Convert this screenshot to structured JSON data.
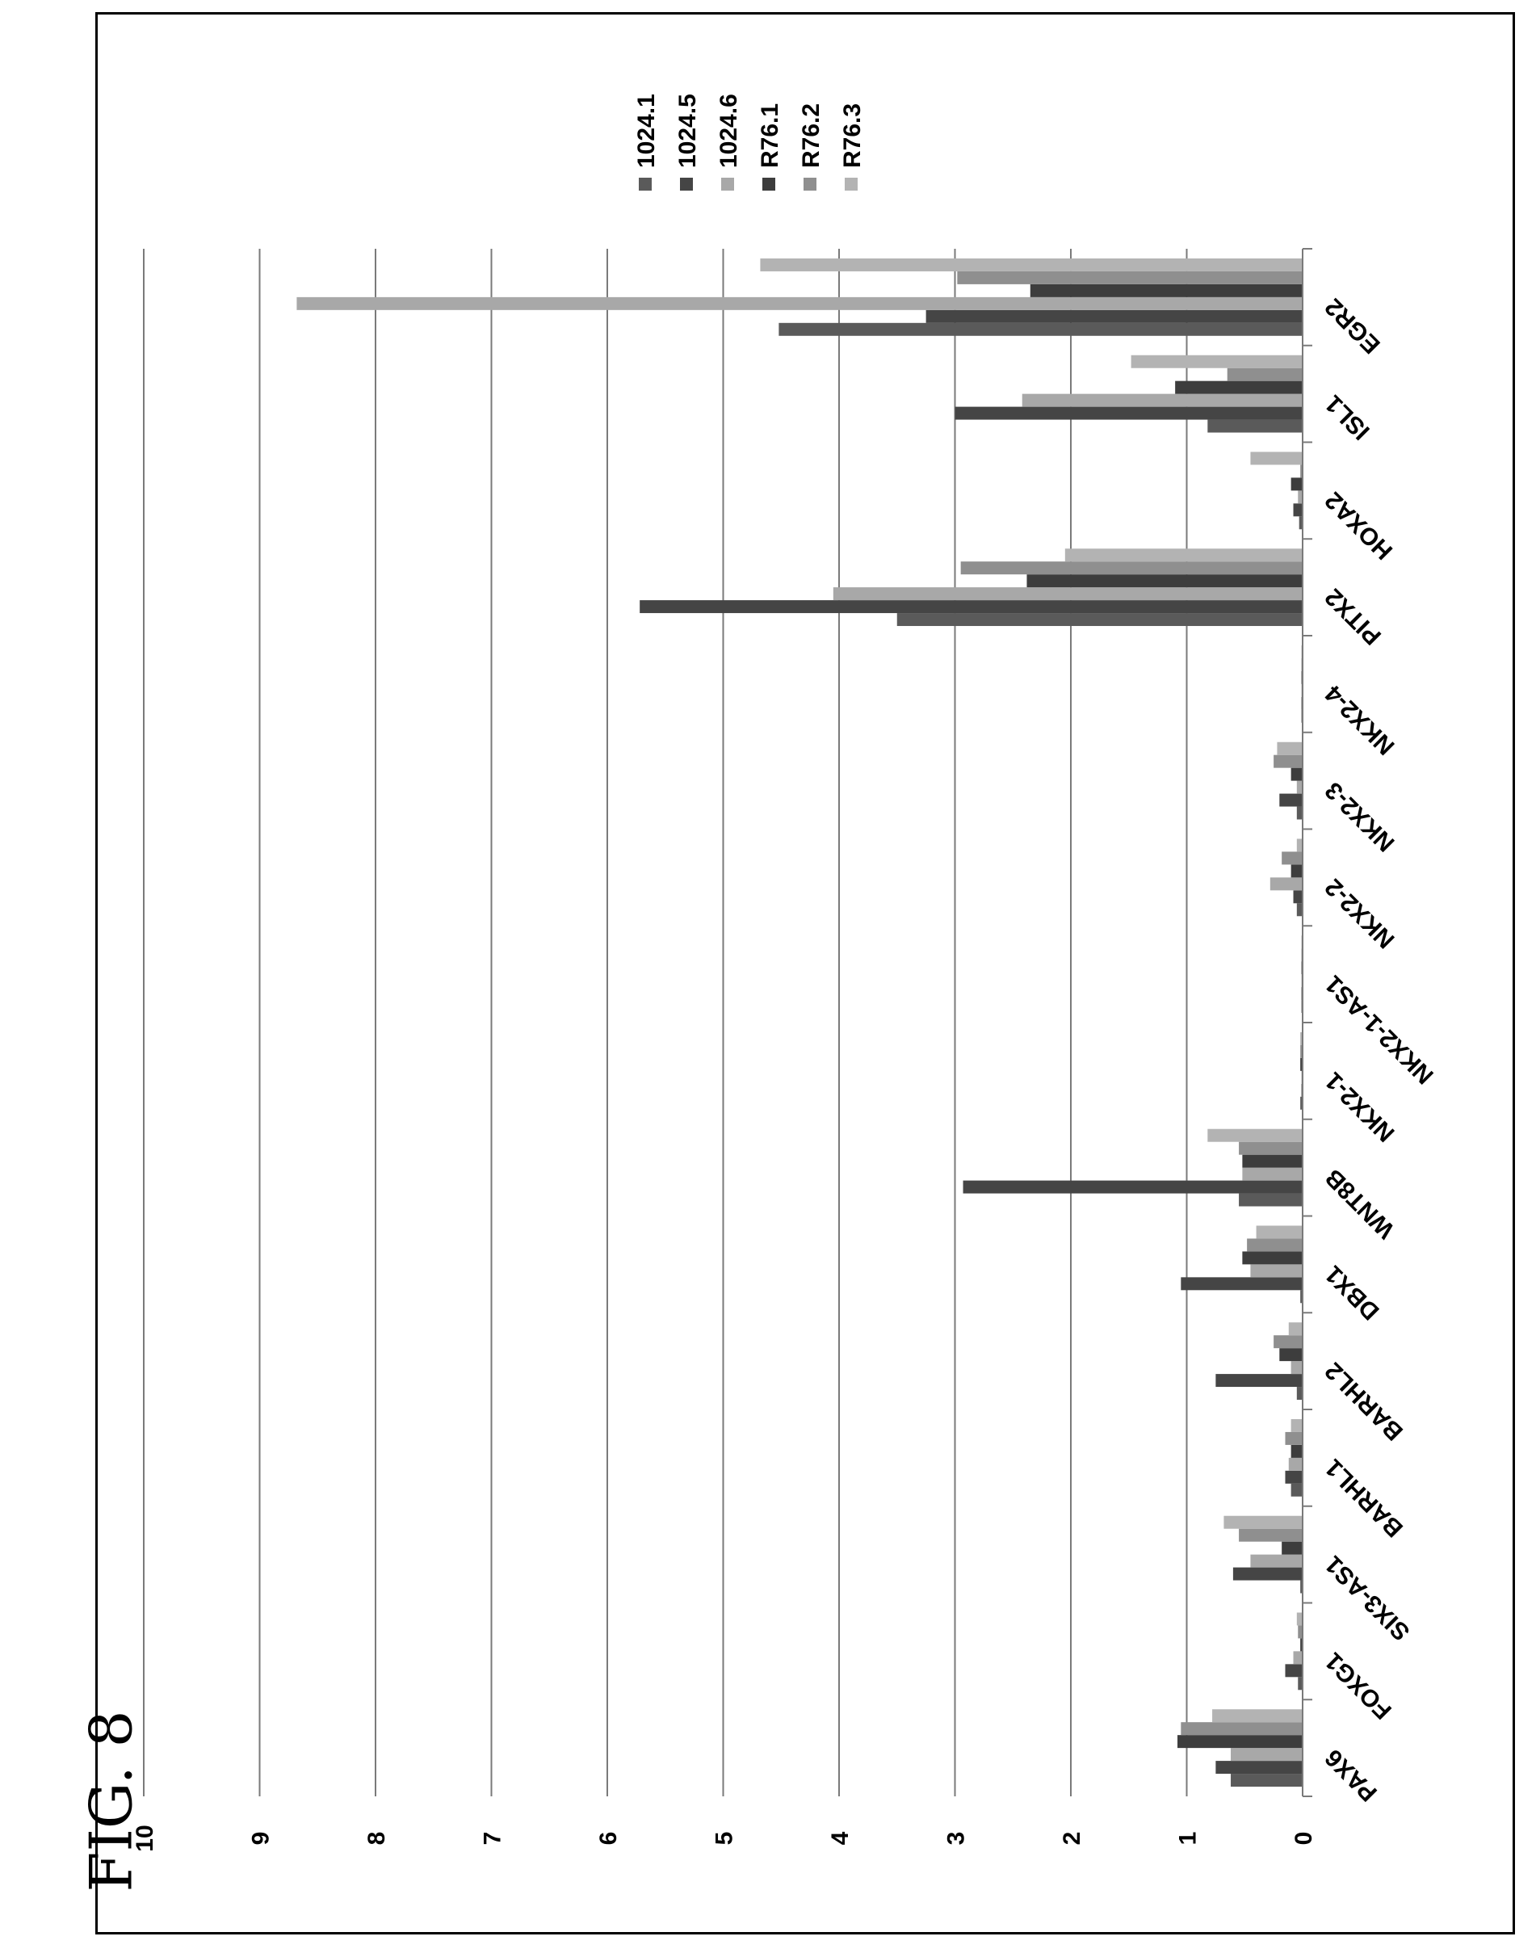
{
  "figure_label": "FIG. 8",
  "colors": {
    "1024.1": "#5a5a5a",
    "1024.5": "#454545",
    "1024.6": "#a8a8a8",
    "R76.1": "#3d3d3d",
    "R76.2": "#8f8f8f",
    "R76.3": "#b3b3b3",
    "grid": "#7a7a7a",
    "axis": "#7a7a7a"
  },
  "chart_data": {
    "type": "bar",
    "orientation": "horizontal (page rotated 90°)",
    "title": "",
    "xlabel": "",
    "ylabel": "",
    "ylim": [
      0,
      10
    ],
    "yticks": [
      0,
      1,
      2,
      3,
      4,
      5,
      6,
      7,
      8,
      9,
      10
    ],
    "grid": true,
    "legend_position": "top-right",
    "categories": [
      "PAX6",
      "FOXG1",
      "SIX3-AS1",
      "BARHL1",
      "BARHL2",
      "DBX1",
      "WNT8B",
      "NKX2-1",
      "NKX2-1-AS1",
      "NKX2-2",
      "NKX2-3",
      "NKX2-4",
      "PITX2",
      "HOXA2",
      "ISL1",
      "EGR2"
    ],
    "series": [
      {
        "name": "1024.1",
        "values": [
          0.62,
          0.04,
          0.02,
          0.1,
          0.05,
          0.02,
          0.55,
          0.02,
          0.01,
          0.05,
          0.05,
          0.01,
          3.5,
          0.03,
          0.82,
          4.52
        ]
      },
      {
        "name": "1024.5",
        "values": [
          0.75,
          0.15,
          0.6,
          0.15,
          0.75,
          1.05,
          2.93,
          0.01,
          0.01,
          0.08,
          0.2,
          0.01,
          5.72,
          0.08,
          3.0,
          3.25
        ]
      },
      {
        "name": "1024.6",
        "values": [
          0.62,
          0.08,
          0.45,
          0.12,
          0.1,
          0.45,
          0.52,
          0.01,
          0.01,
          0.28,
          0.05,
          0.01,
          4.05,
          0.04,
          2.42,
          8.68
        ]
      },
      {
        "name": "R76.1",
        "values": [
          1.08,
          0.02,
          0.18,
          0.1,
          0.2,
          0.52,
          0.52,
          0.02,
          0.01,
          0.1,
          0.1,
          0.01,
          2.38,
          0.1,
          1.1,
          2.35
        ]
      },
      {
        "name": "R76.2",
        "values": [
          1.05,
          0.04,
          0.55,
          0.15,
          0.25,
          0.48,
          0.55,
          0.02,
          0.01,
          0.18,
          0.25,
          0.01,
          2.95,
          0.02,
          0.65,
          2.98
        ]
      },
      {
        "name": "R76.3",
        "values": [
          0.78,
          0.05,
          0.68,
          0.1,
          0.12,
          0.4,
          0.82,
          0.02,
          0.01,
          0.05,
          0.22,
          0.01,
          2.05,
          0.45,
          1.48,
          4.68
        ]
      }
    ]
  }
}
